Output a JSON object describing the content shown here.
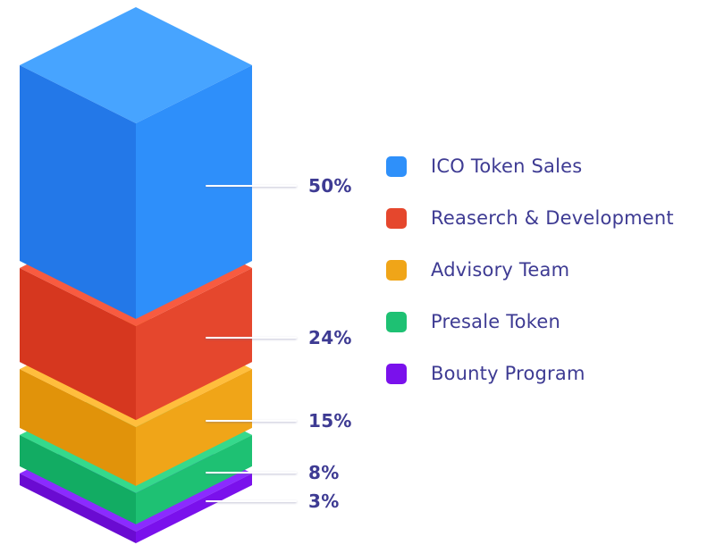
{
  "chart_data": {
    "type": "bar",
    "variant": "isometric-3d-stacked-column",
    "unit": "%",
    "legend_position": "right",
    "text_color": "#3E3B93",
    "background": "#FFFFFF",
    "segments": [
      {
        "label": "ICO Token Sales",
        "value": 50,
        "pct_label": "50%",
        "color": "#2E90FA",
        "faces": {
          "top": "#47A4FF",
          "left": "#2378E8",
          "right": "#2E8FFA"
        }
      },
      {
        "label": "Reaserch & Development",
        "value": 24,
        "pct_label": "24%",
        "color": "#E5472D",
        "faces": {
          "top": "#F85B40",
          "left": "#D6371F",
          "right": "#E5472D"
        }
      },
      {
        "label": "Advisory Team",
        "value": 15,
        "pct_label": "15%",
        "color": "#F0A518",
        "faces": {
          "top": "#FFBE3D",
          "left": "#E1930A",
          "right": "#F0A518"
        }
      },
      {
        "label": "Presale Token",
        "value": 8,
        "pct_label": "8%",
        "color": "#1EC173",
        "faces": {
          "top": "#35D98C",
          "left": "#12AC63",
          "right": "#1EC173"
        }
      },
      {
        "label": "Bounty Program",
        "value": 3,
        "pct_label": "3%",
        "color": "#7A11EC",
        "faces": {
          "top": "#8B2BFF",
          "left": "#6A0BD2",
          "right": "#7A11EC"
        }
      }
    ]
  }
}
